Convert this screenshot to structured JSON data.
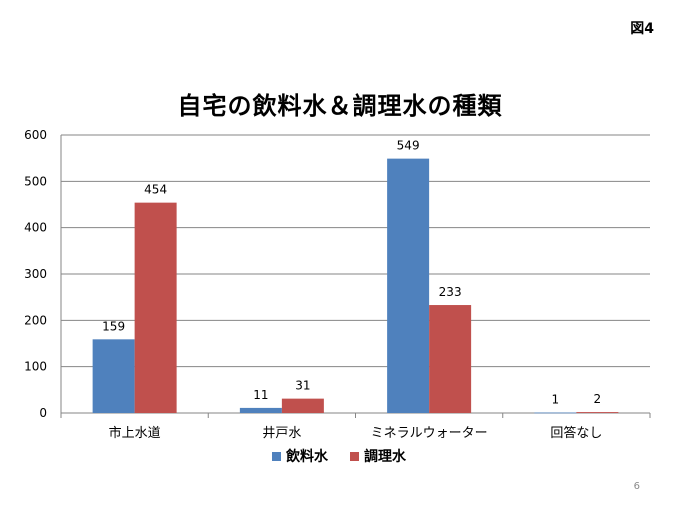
{
  "figure_label": "図4",
  "page_number": "6",
  "chart_data": {
    "type": "bar",
    "title": "自宅の飲料水＆調理水の種類",
    "categories": [
      "市上水道",
      "井戸水",
      "ミネラルウォーター",
      "回答なし"
    ],
    "series": [
      {
        "name": "飲料水",
        "color": "#4f81bd",
        "values": [
          159,
          11,
          549,
          1
        ]
      },
      {
        "name": "調理水",
        "color": "#c0504d",
        "values": [
          454,
          31,
          233,
          2
        ]
      }
    ],
    "y_ticks": [
      0,
      100,
      200,
      300,
      400,
      500,
      600
    ],
    "ylim": [
      0,
      600
    ],
    "grid": true,
    "legend": "bottom",
    "data_labels": true,
    "xlabel": "",
    "ylabel": ""
  }
}
